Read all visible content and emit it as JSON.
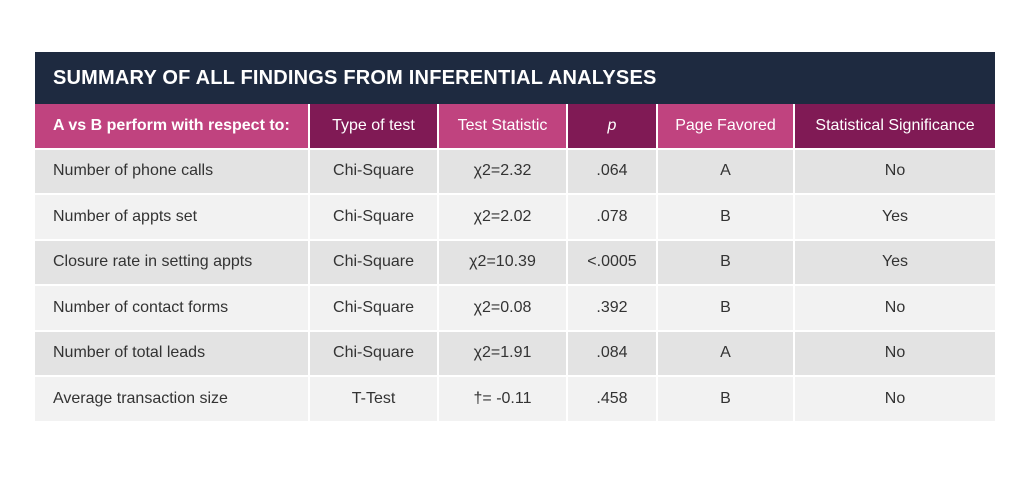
{
  "title": "SUMMARY OF ALL FINDINGS FROM INFERENTIAL ANALYSES",
  "columns": [
    "A vs B perform with respect to:",
    "Type of test",
    "Test Statistic",
    "p",
    "Page Favored",
    "Statistical Significance"
  ],
  "rows": [
    [
      "Number of phone calls",
      "Chi-Square",
      "χ2=2.32",
      ".064",
      "A",
      "No"
    ],
    [
      "Number of appts set",
      "Chi-Square",
      "χ2=2.02",
      ".078",
      "B",
      "Yes"
    ],
    [
      "Closure rate in setting appts",
      "Chi-Square",
      "χ2=10.39",
      "<.0005",
      "B",
      "Yes"
    ],
    [
      "Number of contact forms",
      "Chi-Square",
      "χ2=0.08",
      ".392",
      "B",
      "No"
    ],
    [
      "Number of total leads",
      "Chi-Square",
      "χ2=1.91",
      ".084",
      "A",
      "No"
    ],
    [
      "Average transaction size",
      "T-Test",
      "†= -0.11",
      ".458",
      "B",
      "No"
    ]
  ],
  "colors": {
    "title_bg": "#1e2a40",
    "header_pink": "#c0437f",
    "header_plum": "#801a55",
    "row_dark": "#e3e3e3",
    "row_light": "#f2f2f2"
  }
}
